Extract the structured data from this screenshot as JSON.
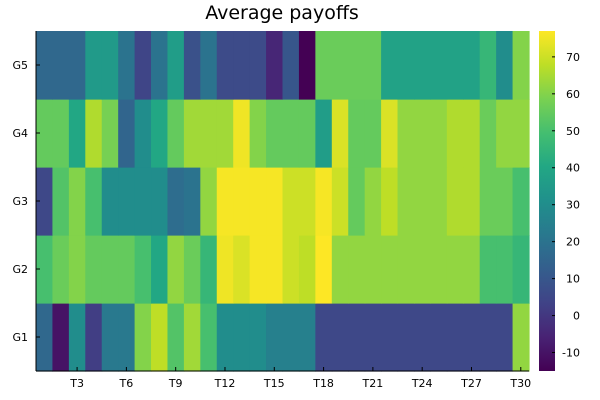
{
  "chart_data": {
    "type": "heatmap",
    "title": "Average payoffs",
    "x_tick_labels": [
      "T3",
      "T6",
      "T9",
      "T12",
      "T15",
      "T18",
      "T21",
      "T24",
      "T27",
      "T30"
    ],
    "x_tick_positions": [
      3,
      6,
      9,
      12,
      15,
      18,
      21,
      24,
      27,
      30
    ],
    "y_categories": [
      "G1",
      "G2",
      "G3",
      "G4",
      "G5"
    ],
    "columns": [
      "T1",
      "T2",
      "T3",
      "T4",
      "T5",
      "T6",
      "T7",
      "T8",
      "T9",
      "T10",
      "T11",
      "T12",
      "T13",
      "T14",
      "T15",
      "T16",
      "T17",
      "T18",
      "T19",
      "T20",
      "T21",
      "T22",
      "T23",
      "T24",
      "T25",
      "T26",
      "T27",
      "T28",
      "T29",
      "T30"
    ],
    "values": [
      [
        16,
        -10,
        30,
        2,
        22,
        22,
        60,
        68,
        52,
        64,
        50,
        30,
        30,
        30,
        25,
        25,
        25,
        5,
        5,
        5,
        5,
        5,
        5,
        5,
        5,
        5,
        5,
        5,
        5,
        62
      ],
      [
        50,
        56,
        60,
        55,
        55,
        55,
        50,
        40,
        62,
        56,
        46,
        75,
        72,
        76,
        76,
        70,
        68,
        77,
        62,
        62,
        62,
        62,
        62,
        62,
        62,
        62,
        62,
        50,
        50,
        46
      ],
      [
        5,
        52,
        60,
        50,
        30,
        30,
        30,
        30,
        18,
        20,
        62,
        76,
        76,
        76,
        76,
        70,
        70,
        76,
        70,
        55,
        62,
        68,
        62,
        62,
        62,
        66,
        66,
        56,
        56,
        50
      ],
      [
        55,
        55,
        40,
        66,
        58,
        15,
        30,
        40,
        55,
        64,
        64,
        64,
        75,
        60,
        55,
        55,
        55,
        36,
        72,
        55,
        55,
        72,
        62,
        62,
        62,
        66,
        66,
        56,
        62,
        62
      ],
      [
        16,
        16,
        16,
        35,
        35,
        20,
        4,
        20,
        36,
        8,
        20,
        6,
        6,
        6,
        -5,
        10,
        -15,
        56,
        56,
        56,
        56,
        38,
        38,
        38,
        38,
        38,
        38,
        46,
        30,
        60
      ]
    ],
    "colorbar_ticks": [
      -10,
      0,
      10,
      20,
      30,
      40,
      50,
      60,
      70
    ],
    "zlim": [
      -15,
      77
    ],
    "colormap": "viridis",
    "grid": false,
    "legend": "colorbar-right"
  }
}
